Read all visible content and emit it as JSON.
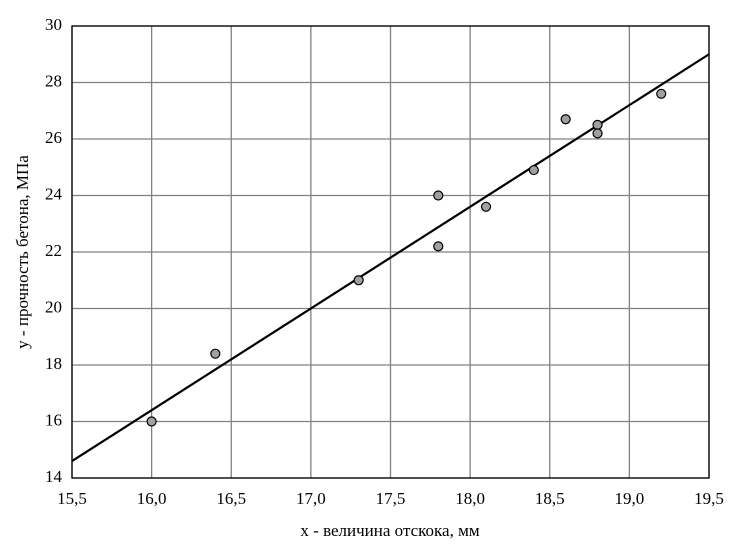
{
  "chart_data": {
    "type": "scatter",
    "x_label": "x - величина отскока, мм",
    "y_label": "y - прочность бетона, МПа",
    "x": [
      16.0,
      16.4,
      17.3,
      17.8,
      17.8,
      18.1,
      18.4,
      18.6,
      18.8,
      18.8,
      19.2
    ],
    "y": [
      16.0,
      18.4,
      21.0,
      24.0,
      22.2,
      23.6,
      24.9,
      26.7,
      26.5,
      26.2,
      27.6
    ],
    "color": "#a0a0a0",
    "fit_line": {
      "x": [
        15.5,
        19.5
      ],
      "y": [
        14.6,
        29.0
      ],
      "color": "#000000"
    },
    "xlim": [
      15.5,
      19.5
    ],
    "xticks": [
      {
        "value": 15.5,
        "label": "15,5"
      },
      {
        "value": 16.0,
        "label": "16,0"
      },
      {
        "value": 16.5,
        "label": "16,5"
      },
      {
        "value": 17.0,
        "label": "17,0"
      },
      {
        "value": 17.5,
        "label": "17,5"
      },
      {
        "value": 18.0,
        "label": "18,0"
      },
      {
        "value": 18.5,
        "label": "18,5"
      },
      {
        "value": 19.0,
        "label": "19,0"
      },
      {
        "value": 19.5,
        "label": "19,5"
      }
    ],
    "ylim": [
      14,
      30
    ],
    "yticks": [
      14,
      16,
      18,
      20,
      22,
      24,
      26,
      28,
      30
    ],
    "grid": true
  }
}
